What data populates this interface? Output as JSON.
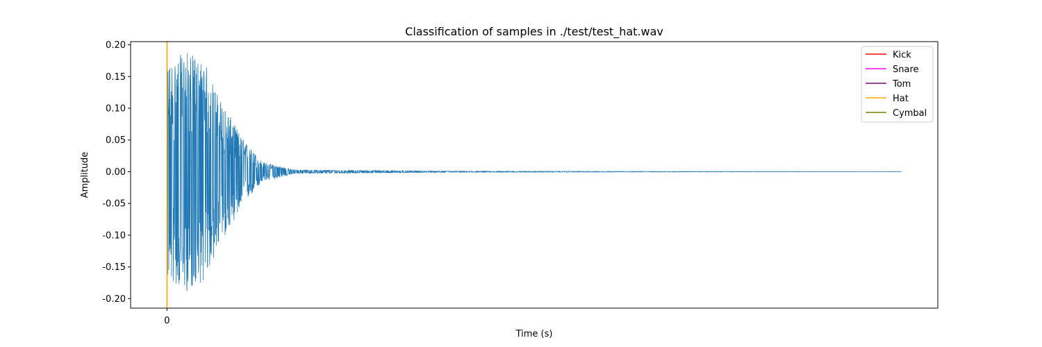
{
  "chart_data": {
    "type": "line",
    "title": "Classification of samples in ./test/test_hat.wav",
    "xlabel": "Time (s)",
    "ylabel": "Amplitude",
    "xticks": [
      0
    ],
    "xtick_labels": [
      "0"
    ],
    "yticks": [
      -0.2,
      -0.15,
      -0.1,
      -0.05,
      0.0,
      0.05,
      0.1,
      0.15,
      0.2
    ],
    "ytick_labels": [
      "-0.20",
      "-0.15",
      "-0.10",
      "-0.05",
      "0.00",
      "0.05",
      "0.10",
      "0.15",
      "0.20"
    ],
    "ylim": [
      -0.215,
      0.205
    ],
    "xlim": [
      -0.057,
      1.207
    ],
    "grid": false,
    "legend_position": "top-right",
    "series": [
      {
        "name": "waveform",
        "color": "#1f77b4",
        "x_end": 1.15,
        "peak_amplitude": 0.19,
        "envelope": [
          {
            "t": 0.0,
            "a": 0.17
          },
          {
            "t": 0.03,
            "a": 0.19
          },
          {
            "t": 0.06,
            "a": 0.17
          },
          {
            "t": 0.08,
            "a": 0.12
          },
          {
            "t": 0.12,
            "a": 0.05
          },
          {
            "t": 0.15,
            "a": 0.015
          },
          {
            "t": 0.2,
            "a": 0.003
          },
          {
            "t": 0.45,
            "a": 0.001
          },
          {
            "t": 1.15,
            "a": 0.0
          }
        ]
      }
    ],
    "onsets": [
      {
        "label": "Hat",
        "time": 0.0,
        "color": "#ffa500"
      }
    ],
    "legend": [
      {
        "label": "Kick",
        "color": "#ff0000"
      },
      {
        "label": "Snare",
        "color": "#ff00ff"
      },
      {
        "label": "Tom",
        "color": "#800080"
      },
      {
        "label": "Hat",
        "color": "#ffa500"
      },
      {
        "label": "Cymbal",
        "color": "#808000"
      }
    ]
  }
}
